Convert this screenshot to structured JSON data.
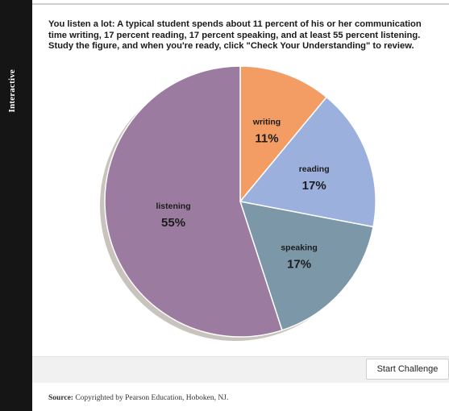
{
  "sidebar": {
    "label": "Interactive"
  },
  "instructions": "You listen a lot: A typical student spends about 11 percent of his or her communication time writing, 17 percent reading, 17 percent speaking, and at least 55 percent listening. Study the figure, and when you're ready, click \"Check Your Understanding\" to review.",
  "chart_data": {
    "type": "pie",
    "title": "",
    "unit": "%",
    "slices": [
      {
        "label": "writing",
        "value": 11,
        "display": "11%",
        "color": "#f39c63"
      },
      {
        "label": "reading",
        "value": 17,
        "display": "17%",
        "color": "#9cb0dd"
      },
      {
        "label": "speaking",
        "value": 17,
        "display": "17%",
        "color": "#7b97a8"
      },
      {
        "label": "listening",
        "value": 55,
        "display": "55%",
        "color": "#9b7b9f"
      }
    ]
  },
  "footer": {
    "start_button": "Start Challenge"
  },
  "source": {
    "label": "Source:",
    "text": "Copyrighted by Pearson Education, Hoboken, NJ."
  }
}
